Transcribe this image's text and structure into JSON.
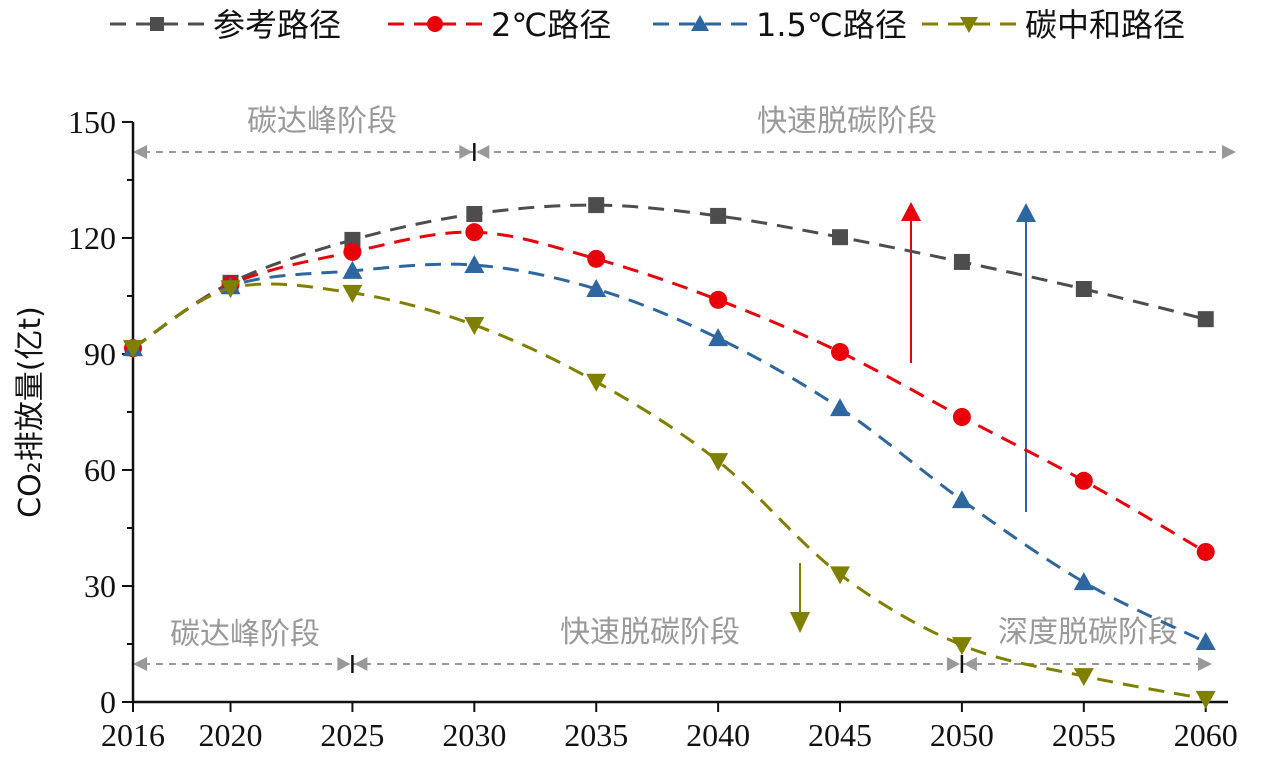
{
  "chart_data": {
    "type": "line",
    "ylabel": "CO₂排放量(亿t)",
    "xlabel": "",
    "x": [
      2016,
      2020,
      2025,
      2030,
      2035,
      2040,
      2045,
      2050,
      2055,
      2060
    ],
    "xticks": [
      "2016",
      "2020",
      "2025",
      "2030",
      "2035",
      "2040",
      "2045",
      "2050",
      "2055",
      "2060"
    ],
    "yticks": [
      "0",
      "30",
      "60",
      "90",
      "120",
      "150"
    ],
    "ylim": [
      0,
      150
    ],
    "xlim": [
      2016,
      2061
    ],
    "grid": false,
    "legend_position": "top",
    "series": [
      {
        "name": "参考路径",
        "color": "#4d4d4d",
        "marker": "square",
        "values": [
          91.5,
          108.4,
          119.5,
          126.2,
          128.5,
          125.7,
          120.2,
          113.8,
          106.8,
          99.0
        ]
      },
      {
        "name": "2℃路径",
        "color": "#e8000b",
        "marker": "circle",
        "values": [
          91.5,
          108.0,
          116.4,
          121.5,
          114.6,
          104.0,
          90.5,
          73.7,
          57.2,
          38.8
        ]
      },
      {
        "name": "1.5℃路径",
        "color": "#2e66a0",
        "marker": "triangle-up",
        "values": [
          91.5,
          107.5,
          111.5,
          113.0,
          106.8,
          94.1,
          76.0,
          52.2,
          31.0,
          15.5
        ]
      },
      {
        "name": "碳中和路径",
        "color": "#808000",
        "marker": "triangle-down",
        "values": [
          91.5,
          107.0,
          105.8,
          97.5,
          82.8,
          62.3,
          33.0,
          14.7,
          6.7,
          0.8
        ]
      }
    ],
    "annotations": {
      "top_phases": [
        {
          "label": "碳达峰阶段",
          "from": 2016,
          "to": 2030
        },
        {
          "label": "快速脱碳阶段",
          "from": 2030,
          "to": 2061
        }
      ],
      "bottom_phases": [
        {
          "label": "碳达峰阶段",
          "from": 2016,
          "to": 2025
        },
        {
          "label": "快速脱碳阶段",
          "from": 2025,
          "to": 2050
        },
        {
          "label": "深度脱碳阶段",
          "from": 2050,
          "to": 2060
        }
      ]
    }
  }
}
